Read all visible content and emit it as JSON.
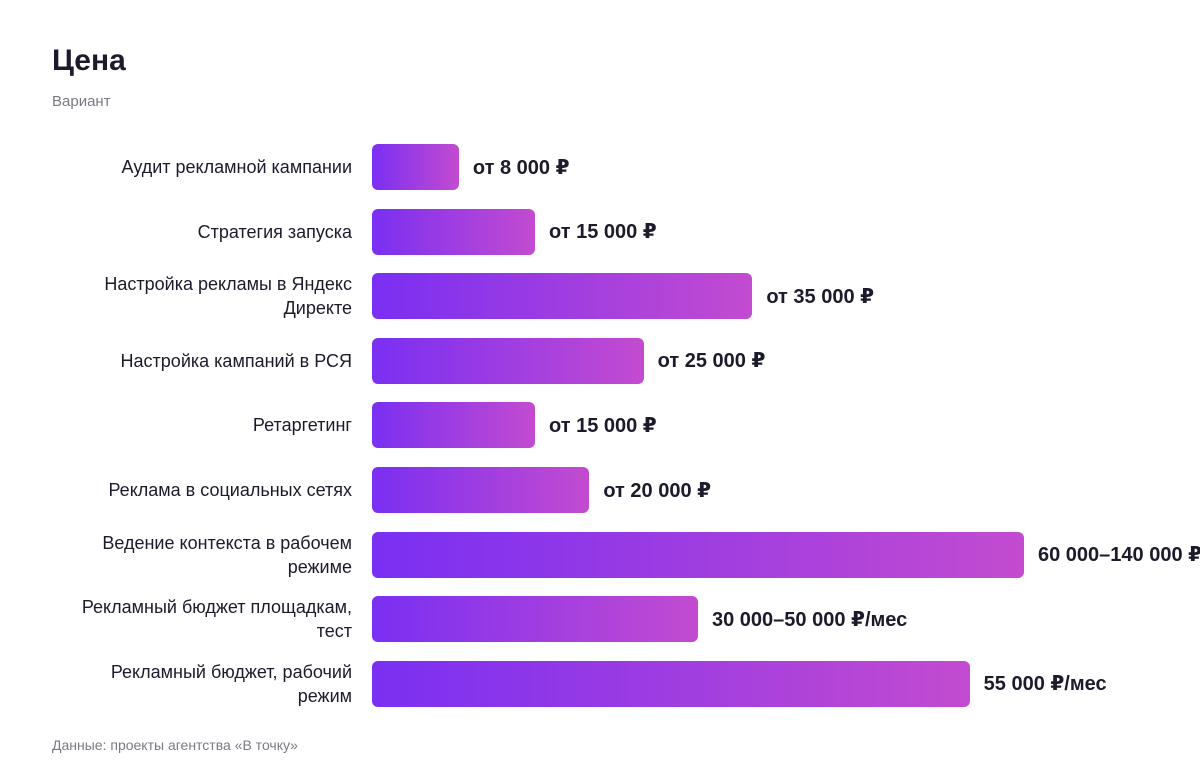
{
  "chart_data": {
    "type": "bar",
    "orientation": "horizontal",
    "title": "Цена",
    "subtitle": "Вариант",
    "categories": [
      "Аудит рекламной кампании",
      "Стратегия запуска",
      "Настройка рекламы в Яндекс Директе",
      "Настройка кампаний в РСЯ",
      "Ретаргетинг",
      "Реклама в социальных сетях",
      "Ведение контекста в рабочем режиме",
      "Рекламный бюджет площадкам, тест",
      "Рекламный бюджет, рабочий режим"
    ],
    "values": [
      8000,
      15000,
      35000,
      25000,
      15000,
      20000,
      60000,
      30000,
      55000
    ],
    "value_labels": [
      "от 8 000 ₽",
      "от 15 000 ₽",
      "от 35 000 ₽",
      "от 25 000 ₽",
      "от 15 000 ₽",
      "от 20 000 ₽",
      "60 000–140 000 ₽",
      "30 000–50 000 ₽/мес",
      "55 000 ₽/мес"
    ],
    "gradient": [
      "#7a2ff2",
      "#c34bd0"
    ],
    "source": "Данные: проекты агентства «В точку»"
  }
}
